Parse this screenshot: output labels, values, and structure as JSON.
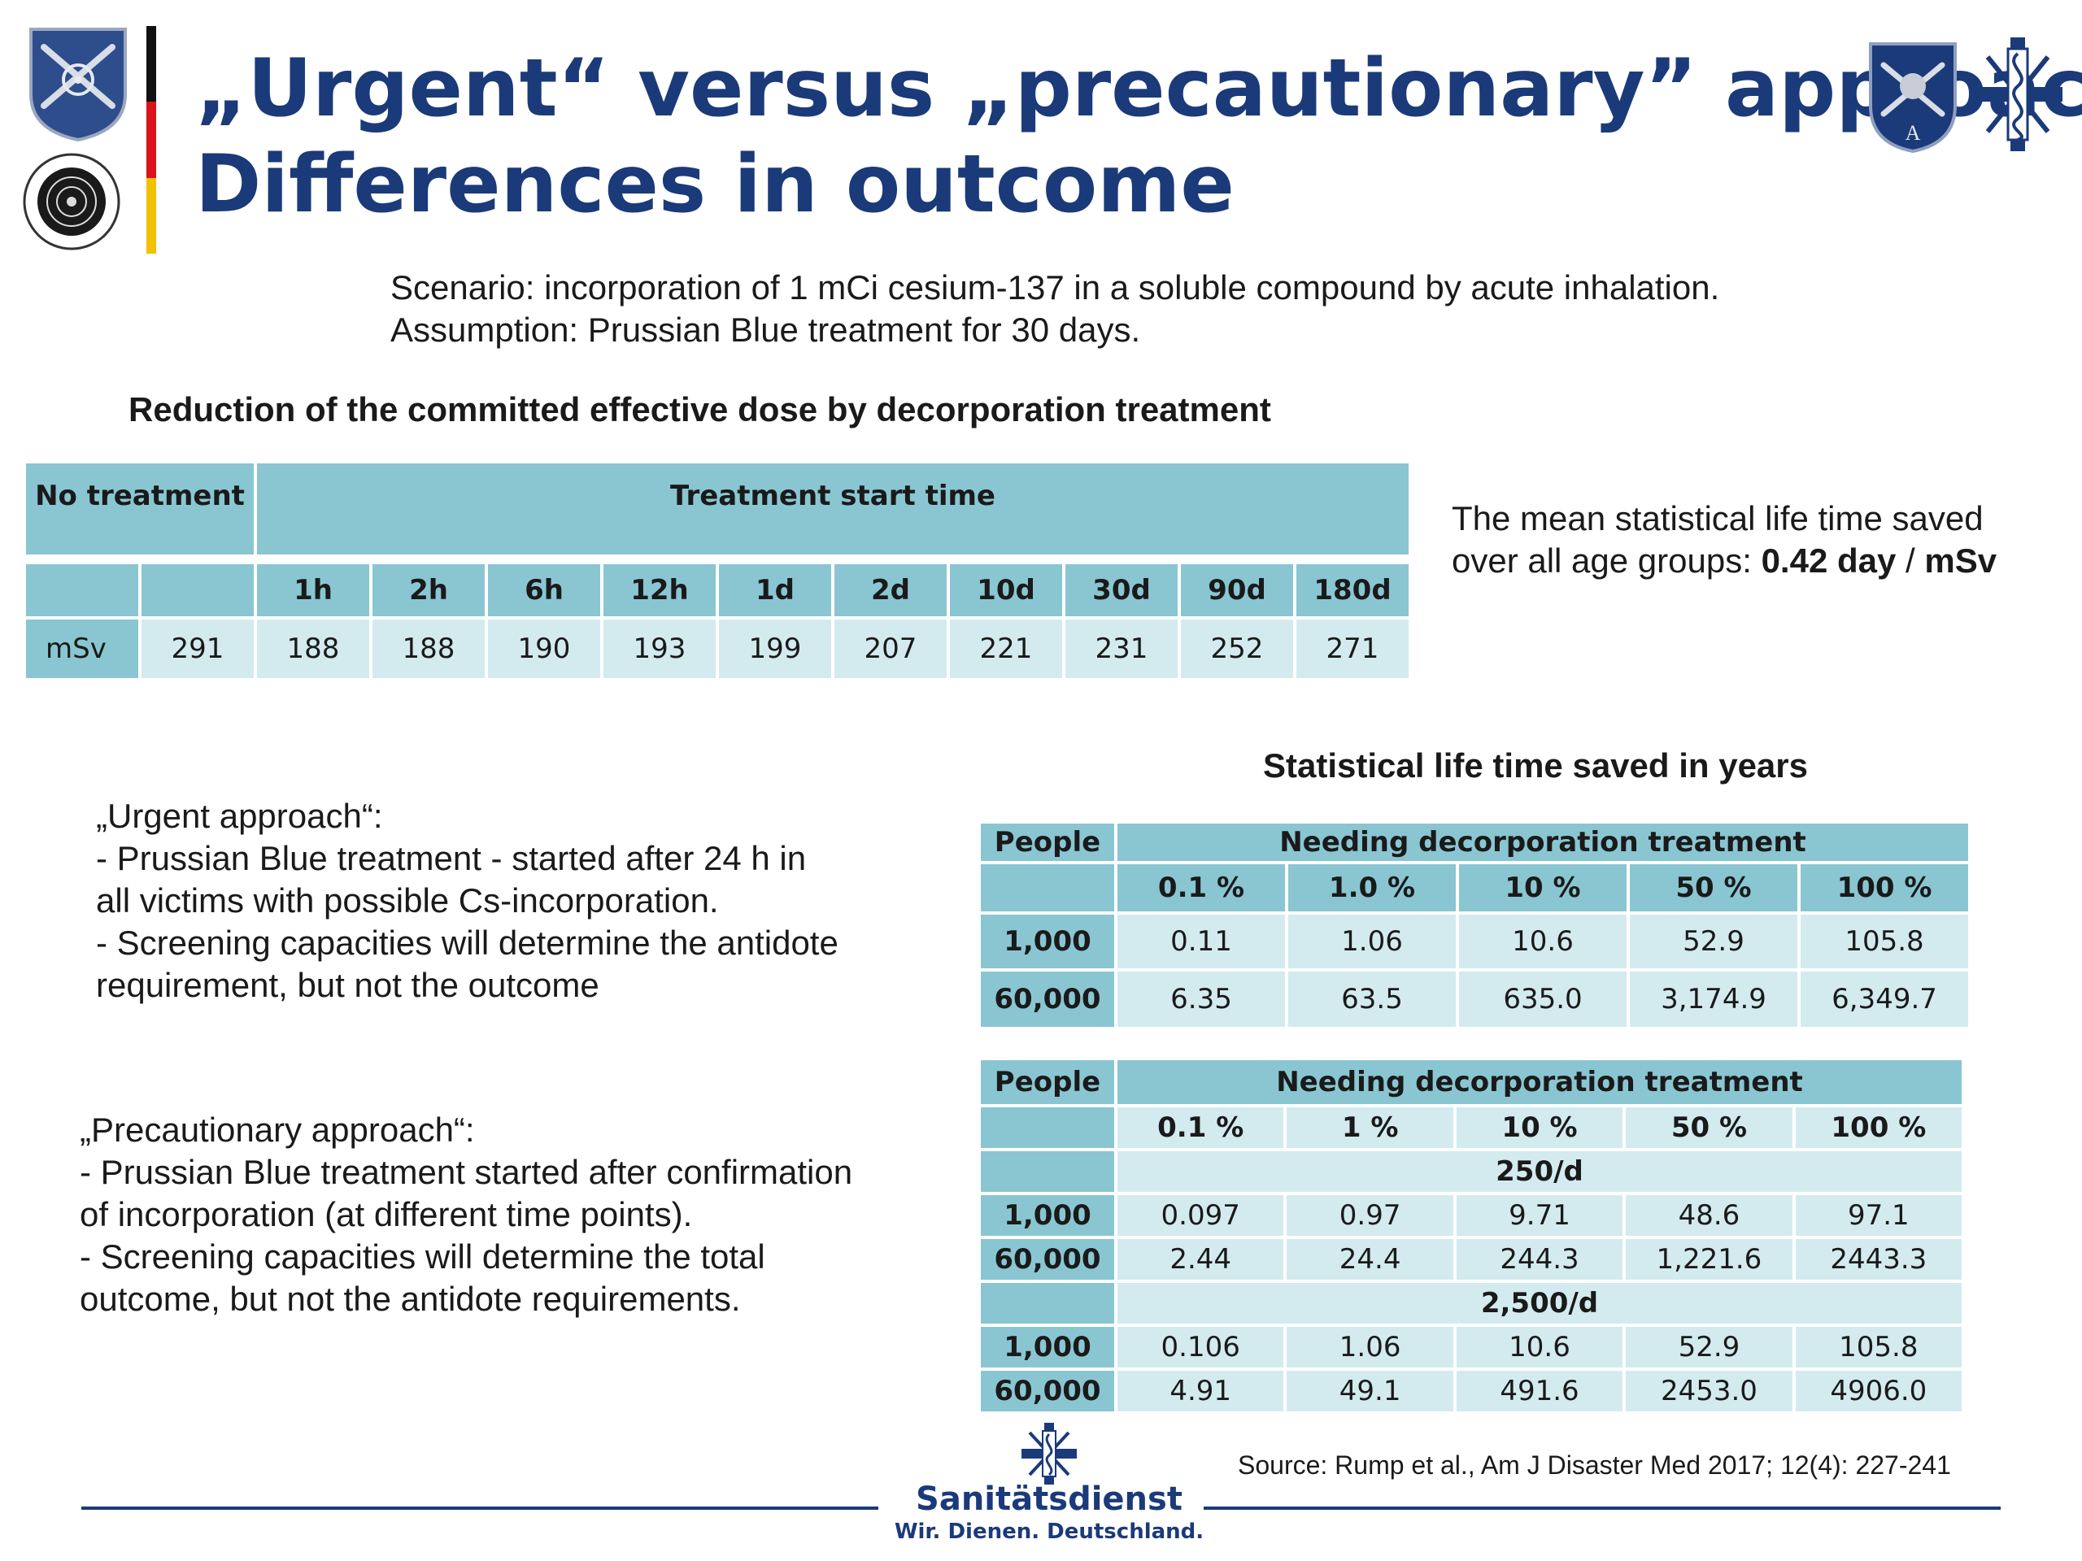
{
  "header": {
    "title_line1": "„Urgent“ versus „precautionary” approach",
    "title_line2": "Differences in outcome",
    "flag_colors": [
      "#111111",
      "#d9141b",
      "#f2c200"
    ]
  },
  "scenario": {
    "line1": "Scenario: incorporation of 1 mCi cesium-137 in a soluble compound by acute inhalation.",
    "line2": "Assumption: Prussian Blue treatment for 30 days."
  },
  "table1": {
    "title": "Reduction of the committed effective dose by decorporation treatment",
    "no_treatment": "No treatment",
    "start_time": "Treatment start time",
    "times": [
      "1h",
      "2h",
      "6h",
      "12h",
      "1d",
      "2d",
      "10d",
      "30d",
      "90d",
      "180d"
    ],
    "row_label": "mSv",
    "no_treatment_value": "291",
    "values": [
      "188",
      "188",
      "190",
      "193",
      "199",
      "207",
      "221",
      "231",
      "252",
      "271"
    ]
  },
  "mean_life": {
    "line1": "The mean statistical life time saved",
    "line2_prefix": "over all age groups: ",
    "value": "0.42 day",
    "sep": " / ",
    "unit": "mSv"
  },
  "stat_title": "Statistical life time saved in years",
  "urgent": {
    "lines": [
      "„Urgent approach“:",
      "- Prussian Blue treatment - started after 24 h in",
      "all victims with possible Cs-incorporation.",
      "- Screening capacities will determine the antidote",
      "requirement, but not the outcome"
    ]
  },
  "precaution": {
    "lines": [
      "„Precautionary  approach“:",
      "-   Prussian Blue treatment started after confirmation",
      "of incorporation (at different time points).",
      "- Screening capacities will determine the total",
      "outcome, but not the antidote requirements."
    ]
  },
  "table2": {
    "people": "People",
    "needing": "Needing decorporation treatment",
    "cols": [
      "0.1 %",
      "1.0 %",
      "10 %",
      "50 %",
      "100 %"
    ],
    "rows": [
      {
        "label": "1,000",
        "values": [
          "0.11",
          "1.06",
          "10.6",
          "52.9",
          "105.8"
        ]
      },
      {
        "label": "60,000",
        "values": [
          "6.35",
          "63.5",
          "635.0",
          "3,174.9",
          "6,349.7"
        ]
      }
    ]
  },
  "table3": {
    "people": "People",
    "needing": "Needing decorporation treatment",
    "cols": [
      "0.1 %",
      "1 %",
      "10 %",
      "50 %",
      "100 %"
    ],
    "sections": [
      {
        "label": "250/d",
        "rows": [
          {
            "label": "1,000",
            "values": [
              "0.097",
              "0.97",
              "9.71",
              "48.6",
              "97.1"
            ]
          },
          {
            "label": "60,000",
            "values": [
              "2.44",
              "24.4",
              "244.3",
              "1,221.6",
              "2443.3"
            ]
          }
        ]
      },
      {
        "label": "2,500/d",
        "rows": [
          {
            "label": "1,000",
            "values": [
              "0.106",
              "1.06",
              "10.6",
              "52.9",
              "105.8"
            ]
          },
          {
            "label": "60,000",
            "values": [
              "4.91",
              "49.1",
              "491.6",
              "2453.0",
              "4906.0"
            ]
          }
        ]
      }
    ]
  },
  "source": "Source: Rump et al., Am J Disaster Med 2017; 12(4): 227-241",
  "footer": {
    "brand": "Sanitätsdienst",
    "slogan": "Wir. Dienen. Deutschland."
  },
  "colors": {
    "title": "#1b3a7a",
    "header_cell": "#89c6d2",
    "data_cell": "#d3ebef"
  }
}
